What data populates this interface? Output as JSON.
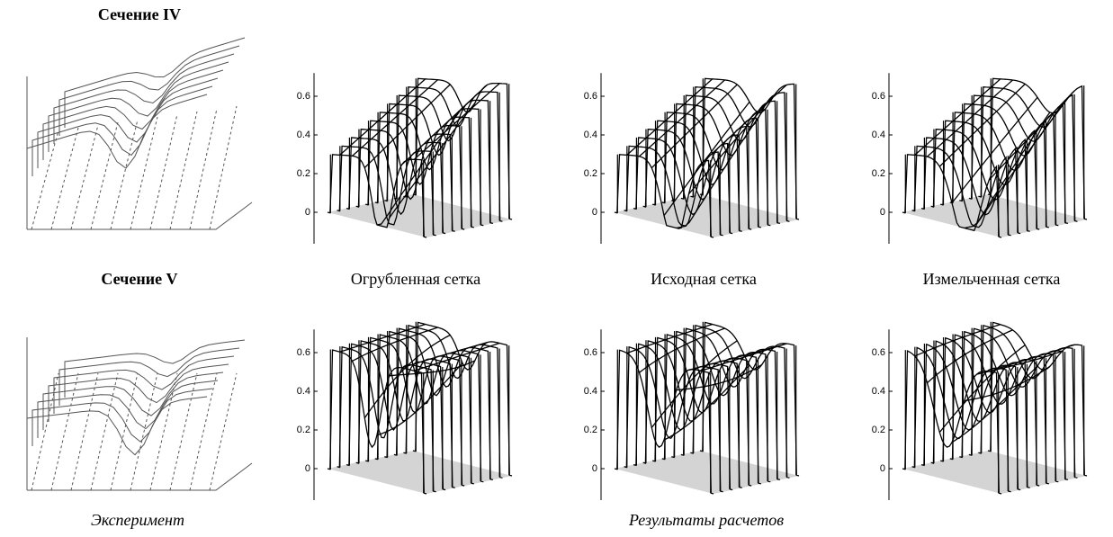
{
  "sections": [
    {
      "title": "Сечение IV"
    },
    {
      "title": "Сечение V"
    }
  ],
  "captions": [
    "Огрубленная сетка",
    "Исходная сетка",
    "Измельченная сетка"
  ],
  "footer": {
    "experiment": "Эксперимент",
    "results": "Результаты расчетов"
  },
  "plots": [
    {
      "yticks": [
        0,
        0.2,
        0.4,
        0.6
      ]
    },
    {
      "yticks": [
        0,
        0.2,
        0.4,
        0.6
      ]
    },
    {
      "yticks": [
        0,
        0.2,
        0.4,
        0.6
      ]
    },
    {
      "yticks": [
        0,
        0.2,
        0.4,
        0.6
      ]
    },
    {
      "yticks": [
        0,
        0.2,
        0.4,
        0.6
      ]
    },
    {
      "yticks": [
        0,
        0.2,
        0.4,
        0.6
      ]
    }
  ]
}
